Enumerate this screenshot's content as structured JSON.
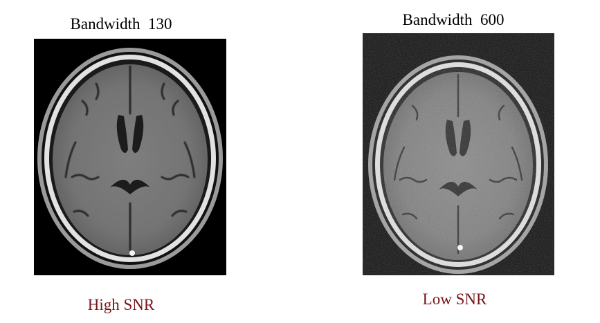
{
  "panels": [
    {
      "title": "Bandwidth  130",
      "caption": "High SNR",
      "image": "brain-mri-axial-slice-high-snr"
    },
    {
      "title": "Bandwidth  600",
      "caption": "Low SNR",
      "image": "brain-mri-axial-slice-low-snr"
    }
  ],
  "colors": {
    "caption": "#7a1418",
    "frame": "#000000",
    "skull": "#d8d8d8",
    "brain": "#767676"
  }
}
